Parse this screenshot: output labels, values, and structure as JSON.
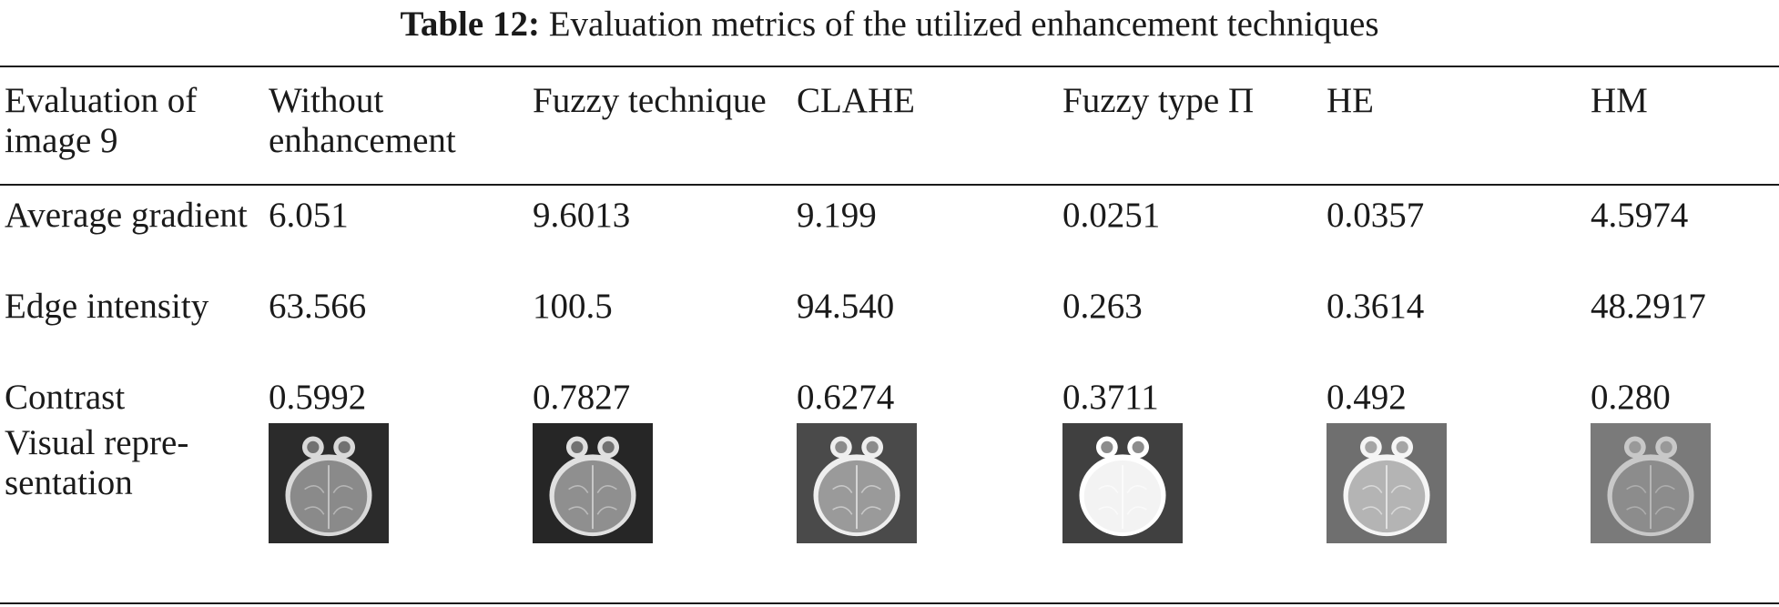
{
  "caption": {
    "label": "Table 12:",
    "text": "Evaluation metrics of the utilized enhancement techniques"
  },
  "headers": [
    "Evaluation of image 9",
    "Without enhancement",
    "Fuzzy technique",
    "CLAHE",
    "Fuzzy type Π",
    "HE",
    "HM"
  ],
  "rows": [
    {
      "metric": "Average gradient",
      "values": [
        "6.051",
        "9.6013",
        "9.199",
        "0.0251",
        "0.0357",
        "4.5974"
      ]
    },
    {
      "metric": "Edge intensity",
      "values": [
        "63.566",
        "100.5",
        "94.540",
        "0.263",
        "0.3614",
        "48.2917"
      ]
    },
    {
      "metric": "Contrast",
      "values": [
        "0.5992",
        "0.7827",
        "0.6274",
        "0.3711",
        "0.492",
        "0.280"
      ]
    }
  ],
  "visual_row": {
    "label": "Visual repre-sentation",
    "images": [
      {
        "name": "mri-without-enhancement",
        "bg": "#2b2b2b",
        "brain": "#8a8a8a",
        "rim": "#d9d9d9"
      },
      {
        "name": "mri-fuzzy-technique",
        "bg": "#262626",
        "brain": "#8f8f8f",
        "rim": "#e0e0e0"
      },
      {
        "name": "mri-clahe",
        "bg": "#4a4a4a",
        "brain": "#9a9a9a",
        "rim": "#eeeeee"
      },
      {
        "name": "mri-fuzzy-type-pi",
        "bg": "#404040",
        "brain": "#f3f3f3",
        "rim": "#ffffff"
      },
      {
        "name": "mri-he",
        "bg": "#6f6f6f",
        "brain": "#b4b4b4",
        "rim": "#f5f5f5"
      },
      {
        "name": "mri-hm",
        "bg": "#7a7a7a",
        "brain": "#8c8c8c",
        "rim": "#c8c8c8"
      }
    ]
  }
}
